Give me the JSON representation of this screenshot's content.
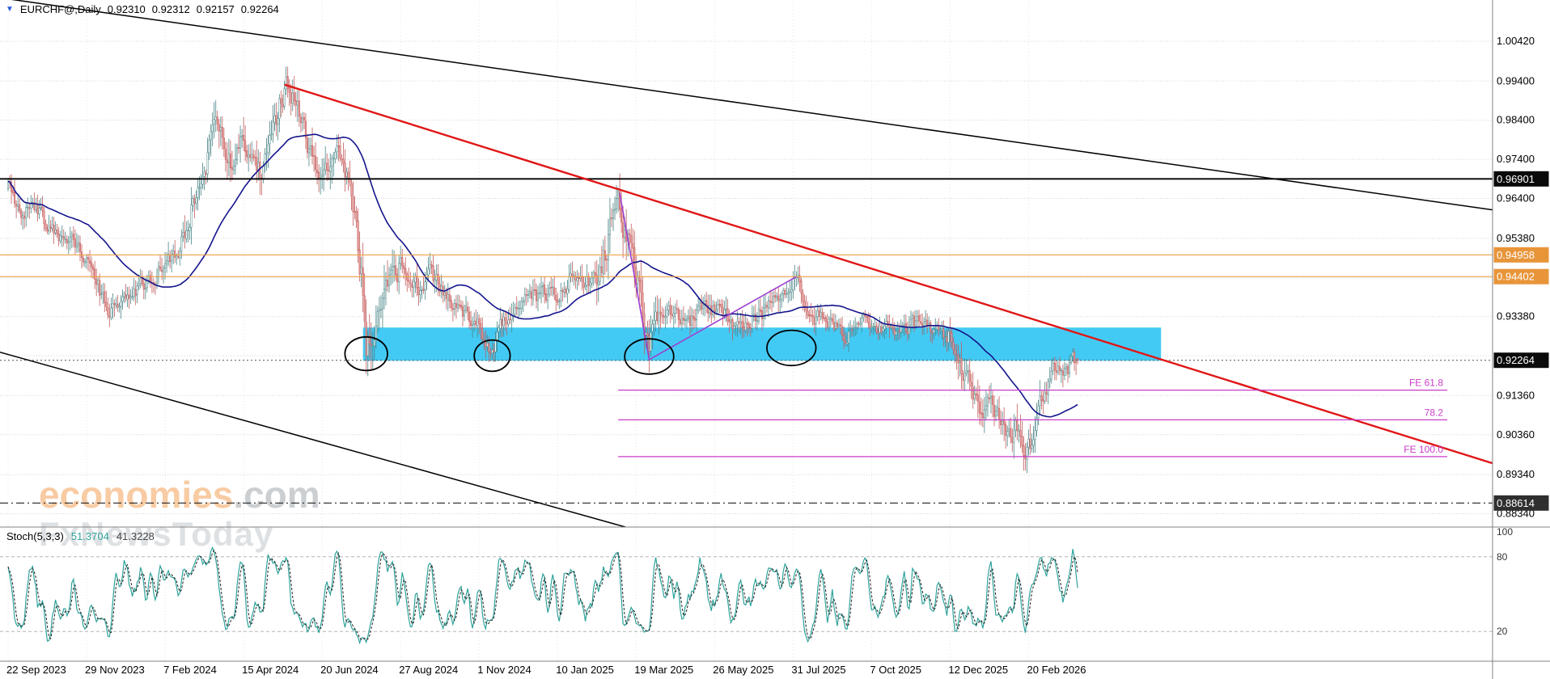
{
  "header": {
    "symbol": "EURCHF@,Daily",
    "open": "0.92310",
    "high": "0.92312",
    "low": "0.92157",
    "close": "0.92264"
  },
  "watermark": {
    "brand": "economies",
    "domain": ".com",
    "line2": "FxNewsToday"
  },
  "price_axis": {
    "badges": [
      {
        "label": "0.96901",
        "price": 0.96901,
        "bg": "#0a0a0a"
      },
      {
        "label": "0.94958",
        "price": 0.94958,
        "bg": "#e8953a"
      },
      {
        "label": "0.94402",
        "price": 0.94402,
        "bg": "#e8953a"
      },
      {
        "label": "0.92264",
        "price": 0.92264,
        "bg": "#0a0a0a"
      },
      {
        "label": "0.88614",
        "price": 0.88614,
        "bg": "#2f2f2f"
      }
    ]
  },
  "time_axis": {
    "labels": [
      "22 Sep 2023",
      "29 Nov 2023",
      "7 Feb 2024",
      "15 Apr 2024",
      "20 Jun 2024",
      "27 Aug 2024",
      "1 Nov 2024",
      "10 Jan 2025",
      "19 Mar 2025",
      "26 May 2025",
      "31 Jul 2025",
      "7 Oct 2025",
      "12 Dec 2025",
      "20 Feb 2026"
    ]
  },
  "stoch_panel": {
    "label": "Stoch(5,3,3)",
    "main_value": "51.3704",
    "signal_value": "41.3228",
    "axis_labels": [
      {
        "label": "100",
        "value": 100
      },
      {
        "label": "80",
        "value": 80
      },
      {
        "label": "20",
        "value": 20
      }
    ]
  },
  "chart_data": {
    "type": "candlestick",
    "title": "EURCHF@,Daily",
    "timeframe": "Daily",
    "last_ohlc": {
      "open": 0.9231,
      "high": 0.92312,
      "low": 0.92157,
      "close": 0.92264
    },
    "x_tick_labels": [
      "22 Sep 2023",
      "29 Nov 2023",
      "7 Feb 2024",
      "15 Apr 2024",
      "20 Jun 2024",
      "27 Aug 2024",
      "1 Nov 2024",
      "10 Jan 2025",
      "19 Mar 2025",
      "26 May 2025",
      "31 Jul 2025",
      "7 Oct 2025",
      "12 Dec 2025",
      "20 Feb 2026"
    ],
    "y_ticks": [
      1.0042,
      0.994,
      0.984,
      0.974,
      0.964,
      0.9538,
      0.9438,
      0.9338,
      0.9238,
      0.9136,
      0.9036,
      0.8934,
      0.8834
    ],
    "ylim": [
      0.88,
      1.01473
    ],
    "n_bars": 655,
    "bars_per_tick": 48,
    "price_path_anchors": [
      [
        0,
        0.9665
      ],
      [
        8,
        0.96
      ],
      [
        15,
        0.9638
      ],
      [
        22,
        0.9585
      ],
      [
        30,
        0.953
      ],
      [
        38,
        0.9556
      ],
      [
        48,
        0.9482
      ],
      [
        55,
        0.9415
      ],
      [
        62,
        0.9338
      ],
      [
        70,
        0.9362
      ],
      [
        80,
        0.9412
      ],
      [
        90,
        0.9446
      ],
      [
        96,
        0.9462
      ],
      [
        105,
        0.9522
      ],
      [
        115,
        0.9652
      ],
      [
        125,
        0.9792
      ],
      [
        130,
        0.984
      ],
      [
        136,
        0.9722
      ],
      [
        142,
        0.9762
      ],
      [
        148,
        0.9726
      ],
      [
        155,
        0.97
      ],
      [
        160,
        0.9782
      ],
      [
        166,
        0.988
      ],
      [
        170,
        0.9926
      ],
      [
        175,
        0.9886
      ],
      [
        182,
        0.979
      ],
      [
        188,
        0.9702
      ],
      [
        195,
        0.9726
      ],
      [
        202,
        0.9744
      ],
      [
        208,
        0.9682
      ],
      [
        213,
        0.958
      ],
      [
        217,
        0.942
      ],
      [
        219,
        0.9252
      ],
      [
        222,
        0.9302
      ],
      [
        228,
        0.9386
      ],
      [
        234,
        0.9426
      ],
      [
        240,
        0.947
      ],
      [
        246,
        0.944
      ],
      [
        252,
        0.9416
      ],
      [
        258,
        0.9448
      ],
      [
        264,
        0.9416
      ],
      [
        270,
        0.938
      ],
      [
        277,
        0.9356
      ],
      [
        283,
        0.934
      ],
      [
        288,
        0.932
      ],
      [
        293,
        0.927
      ],
      [
        296,
        0.9238
      ],
      [
        300,
        0.9296
      ],
      [
        306,
        0.9346
      ],
      [
        312,
        0.9372
      ],
      [
        318,
        0.94
      ],
      [
        324,
        0.9386
      ],
      [
        330,
        0.9402
      ],
      [
        336,
        0.939
      ],
      [
        342,
        0.9426
      ],
      [
        348,
        0.9458
      ],
      [
        352,
        0.944
      ],
      [
        357,
        0.942
      ],
      [
        362,
        0.9452
      ],
      [
        367,
        0.9532
      ],
      [
        371,
        0.9602
      ],
      [
        374,
        0.9618
      ],
      [
        377,
        0.9552
      ],
      [
        380,
        0.95
      ],
      [
        383,
        0.9456
      ],
      [
        386,
        0.942
      ],
      [
        389,
        0.933
      ],
      [
        392,
        0.9244
      ],
      [
        395,
        0.9318
      ],
      [
        399,
        0.9356
      ],
      [
        404,
        0.9348
      ],
      [
        410,
        0.9338
      ],
      [
        416,
        0.9322
      ],
      [
        422,
        0.9346
      ],
      [
        428,
        0.936
      ],
      [
        432,
        0.9352
      ],
      [
        438,
        0.9336
      ],
      [
        444,
        0.9306
      ],
      [
        450,
        0.9322
      ],
      [
        456,
        0.934
      ],
      [
        462,
        0.9352
      ],
      [
        468,
        0.9366
      ],
      [
        473,
        0.9396
      ],
      [
        478,
        0.9432
      ],
      [
        482,
        0.9438
      ],
      [
        486,
        0.9392
      ],
      [
        490,
        0.9356
      ],
      [
        494,
        0.933
      ],
      [
        498,
        0.9336
      ],
      [
        503,
        0.9322
      ],
      [
        508,
        0.931
      ],
      [
        513,
        0.9288
      ],
      [
        518,
        0.9316
      ],
      [
        523,
        0.9328
      ],
      [
        528,
        0.933
      ],
      [
        533,
        0.9308
      ],
      [
        538,
        0.9318
      ],
      [
        543,
        0.9288
      ],
      [
        548,
        0.9302
      ],
      [
        553,
        0.9316
      ],
      [
        558,
        0.9322
      ],
      [
        563,
        0.9316
      ],
      [
        568,
        0.9306
      ],
      [
        572,
        0.929
      ],
      [
        576,
        0.9276
      ],
      [
        580,
        0.9232
      ],
      [
        584,
        0.919
      ],
      [
        588,
        0.9158
      ],
      [
        592,
        0.913
      ],
      [
        596,
        0.9106
      ],
      [
        600,
        0.9128
      ],
      [
        604,
        0.9088
      ],
      [
        608,
        0.9058
      ],
      [
        612,
        0.902
      ],
      [
        616,
        0.9052
      ],
      [
        620,
        0.9016
      ],
      [
        624,
        0.8998
      ],
      [
        627,
        0.904
      ],
      [
        630,
        0.9096
      ],
      [
        633,
        0.914
      ],
      [
        636,
        0.9172
      ],
      [
        639,
        0.9196
      ],
      [
        642,
        0.9216
      ],
      [
        645,
        0.9206
      ],
      [
        648,
        0.9192
      ],
      [
        650,
        0.9212
      ],
      [
        652,
        0.9222
      ],
      [
        654,
        0.92264
      ]
    ],
    "volatility_zones": [
      [
        108,
        240,
        1.45
      ],
      [
        214,
        233,
        2.1
      ],
      [
        360,
        400,
        1.7
      ],
      [
        495,
        575,
        0.85
      ],
      [
        575,
        633,
        1.35
      ]
    ],
    "spikes": [
      {
        "bar": 373,
        "high": 0.9655
      },
      {
        "bar": 374,
        "high": 0.964
      },
      {
        "bar": 219,
        "low": 0.9212
      },
      {
        "bar": 624,
        "low": 0.8988
      }
    ],
    "candle_colors": {
      "up_border": "#4a8486",
      "up_fill": "#ffffff",
      "down_border": "#c25b5b",
      "down_fill": "#e79a97"
    },
    "moving_average": {
      "period": 50,
      "color": "#14148c"
    },
    "horizontal_lines": [
      {
        "price": 0.96901,
        "color": "#000000",
        "width": 1.8,
        "style": "solid"
      },
      {
        "price": 0.94958,
        "color": "#ef9f45",
        "width": 1.2,
        "style": "solid"
      },
      {
        "price": 0.94402,
        "color": "#ef9f45",
        "width": 1.2,
        "style": "solid"
      },
      {
        "price": 0.92264,
        "color": "#555555",
        "width": 1,
        "style": "dotted"
      },
      {
        "price": 0.88614,
        "color": "#222222",
        "width": 1.2,
        "style": "dashdot"
      }
    ],
    "trendlines": [
      {
        "name": "resistance-trendline-red",
        "color": "#e01616",
        "width": 2.4,
        "x1_bar": 169,
        "p1": 0.9931,
        "x2_bar": 910,
        "p2": 0.896
      },
      {
        "name": "upper-channel-line",
        "color": "#000000",
        "width": 1.5,
        "x1_bar": 0,
        "p1": 1.015,
        "x2_bar": 909,
        "p2": 0.961
      },
      {
        "name": "lower-channel-line",
        "color": "#000000",
        "width": 1.5,
        "x1_bar": -5,
        "p1": 0.9247,
        "x2_bar": 386,
        "p2": 0.879
      }
    ],
    "rectangle_zone": {
      "x1_bar": 217,
      "x2_bar": 705,
      "p_top": 0.931,
      "p_bottom": 0.9225,
      "color": "#2fc4f3"
    },
    "zigzag": {
      "color": "#9e3fd0",
      "points": [
        [
          374,
          0.9653
        ],
        [
          392,
          0.9228
        ],
        [
          482,
          0.944
        ]
      ]
    },
    "fib_expansion": {
      "x1_bar": 373,
      "x2_bar": 880,
      "color": "#c83cc8",
      "levels": [
        {
          "label": "FE 61.8",
          "price": 0.915
        },
        {
          "label": "78.2",
          "price": 0.9074
        },
        {
          "label": "FE 100.0",
          "price": 0.898
        }
      ]
    },
    "ellipses": [
      {
        "bar": 219,
        "price": 0.9243,
        "rx_bars": 13,
        "ry_price": 0.0043
      },
      {
        "bar": 296,
        "price": 0.9238,
        "rx_bars": 11,
        "ry_price": 0.004
      },
      {
        "bar": 392,
        "price": 0.9236,
        "rx_bars": 15,
        "ry_price": 0.0045
      },
      {
        "bar": 479,
        "price": 0.9258,
        "rx_bars": 15,
        "ry_price": 0.0045
      }
    ],
    "stochastic": {
      "k": 5,
      "slow": 3,
      "d": 3,
      "levels": [
        80,
        20
      ],
      "main_color": "#2fa39b",
      "signal_color": "#222222"
    }
  }
}
